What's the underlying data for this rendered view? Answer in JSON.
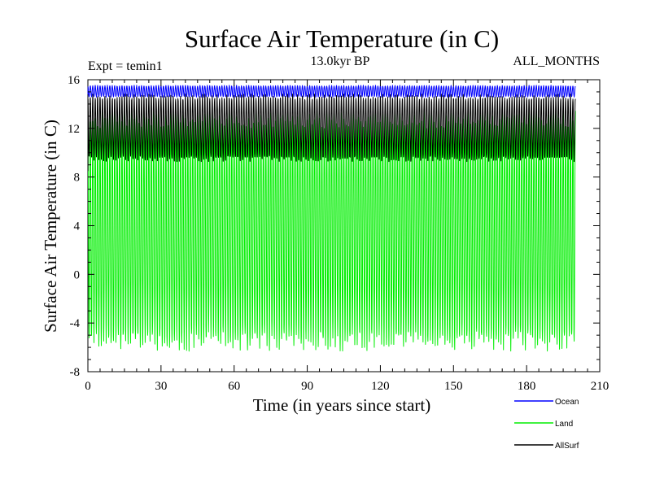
{
  "chart_data": {
    "type": "line",
    "title": "Surface Air Temperature (in C)",
    "subtitle_left": "Expt = temin1",
    "subtitle_center": "13.0kyr BP",
    "subtitle_right": "ALL_MONTHS",
    "xlabel": "Time (in years since start)",
    "ylabel": "Surface Air Temperature (in C)",
    "xlim": [
      0,
      210
    ],
    "ylim": [
      -8,
      16
    ],
    "xticks": [
      0,
      30,
      60,
      90,
      120,
      150,
      180,
      210
    ],
    "yticks": [
      -8,
      -4,
      0,
      4,
      8,
      12,
      16
    ],
    "x_minor_step": 5,
    "y_minor_step": 1,
    "grid": false,
    "legend_position": "bottom-right",
    "x_end": 200,
    "samples_per_year": 12,
    "series": [
      {
        "name": "Ocean",
        "color": "#0000ff",
        "seasonal_min": 14.6,
        "seasonal_max": 15.5,
        "start_value": 14.8
      },
      {
        "name": "Land",
        "color": "#00ee00",
        "seasonal_min": -5.5,
        "seasonal_max": 12.8,
        "start_value": 9.0
      },
      {
        "name": "AllSurf",
        "color": "#000000",
        "seasonal_min": 9.5,
        "seasonal_max": 14.6,
        "start_value": 8.5
      }
    ]
  }
}
